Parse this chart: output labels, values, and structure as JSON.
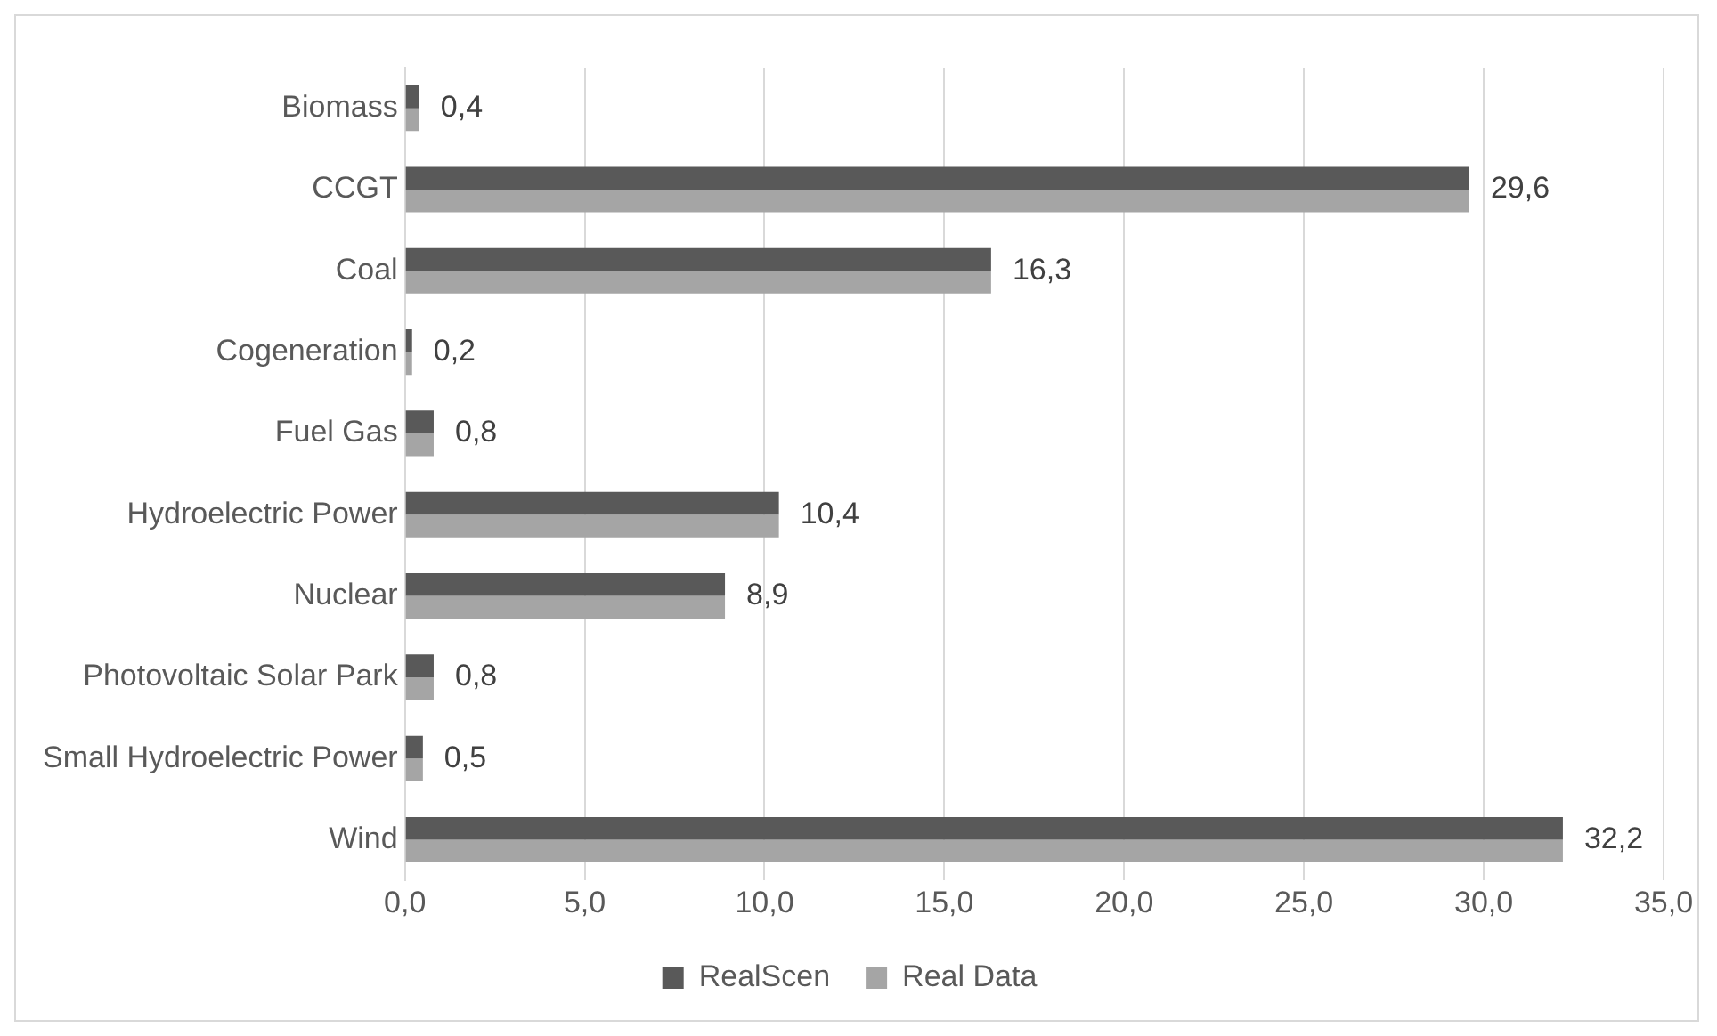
{
  "chart_data": {
    "type": "bar",
    "orientation": "horizontal",
    "categories": [
      "Biomass",
      "CCGT",
      "Coal",
      "Cogeneration",
      "Fuel Gas",
      "Hydroelectric Power",
      "Nuclear",
      "Photovoltaic Solar Park",
      "Small Hydroelectric Power",
      "Wind"
    ],
    "series": [
      {
        "name": "RealScen",
        "color": "#595959",
        "values": [
          0.4,
          29.6,
          16.3,
          0.2,
          0.8,
          10.4,
          8.9,
          0.8,
          0.5,
          32.2
        ],
        "value_labels": [
          "0,4",
          "29,6",
          "16,3",
          "0,2",
          "0,8",
          "10,4",
          "8,9",
          "0,8",
          "0,5",
          "32,2"
        ]
      },
      {
        "name": "Real Data",
        "color": "#a5a5a5",
        "values": [
          0.4,
          29.6,
          16.3,
          0.2,
          0.8,
          10.4,
          8.9,
          0.8,
          0.5,
          32.2
        ]
      }
    ],
    "xlim": [
      0,
      35
    ],
    "xticks": [
      {
        "value": 0,
        "label": "0,0"
      },
      {
        "value": 5,
        "label": "5,0"
      },
      {
        "value": 10,
        "label": "10,0"
      },
      {
        "value": 15,
        "label": "15,0"
      },
      {
        "value": 20,
        "label": "20,0"
      },
      {
        "value": 25,
        "label": "25,0"
      },
      {
        "value": 30,
        "label": "30,0"
      },
      {
        "value": 35,
        "label": "35,0"
      }
    ],
    "grid": "x",
    "legend": "bottom"
  }
}
